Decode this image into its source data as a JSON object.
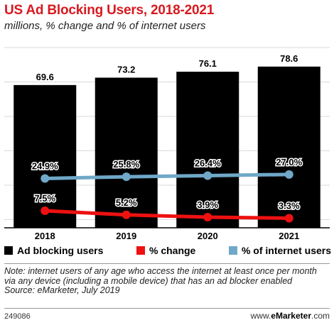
{
  "chart_data": {
    "type": "bar",
    "title": "US Ad Blocking Users, 2018-2021",
    "subtitle": "millions, % change and % of internet users",
    "categories": [
      "2018",
      "2019",
      "2020",
      "2021"
    ],
    "series": [
      {
        "name": "Ad blocking users",
        "kind": "bar",
        "values": [
          69.6,
          73.2,
          76.1,
          78.6
        ],
        "labels": [
          "69.6",
          "73.2",
          "76.1",
          "78.6"
        ],
        "color": "#000000"
      },
      {
        "name": "% change",
        "kind": "line",
        "values": [
          7.5,
          5.2,
          3.9,
          3.3
        ],
        "labels": [
          "7.5%",
          "5.2%",
          "3.9%",
          "3.3%"
        ],
        "color": "#ee1111"
      },
      {
        "name": "% of internet users",
        "kind": "line",
        "values": [
          24.9,
          25.8,
          26.4,
          27.0
        ],
        "labels": [
          "24.9%",
          "25.8%",
          "26.4%",
          "27.0%"
        ],
        "color": "#6fa8c8"
      }
    ],
    "legend_position": "bottom",
    "grid": true
  },
  "note": "Note: internet users of any age who access the internet at least once per month via any device (including a mobile device) that has an ad blocker enabled",
  "source": "Source: eMarketer, July 2019",
  "chart_id": "249086",
  "brand": {
    "prefix": "www.",
    "name": "eMarketer",
    "suffix": ".com"
  }
}
